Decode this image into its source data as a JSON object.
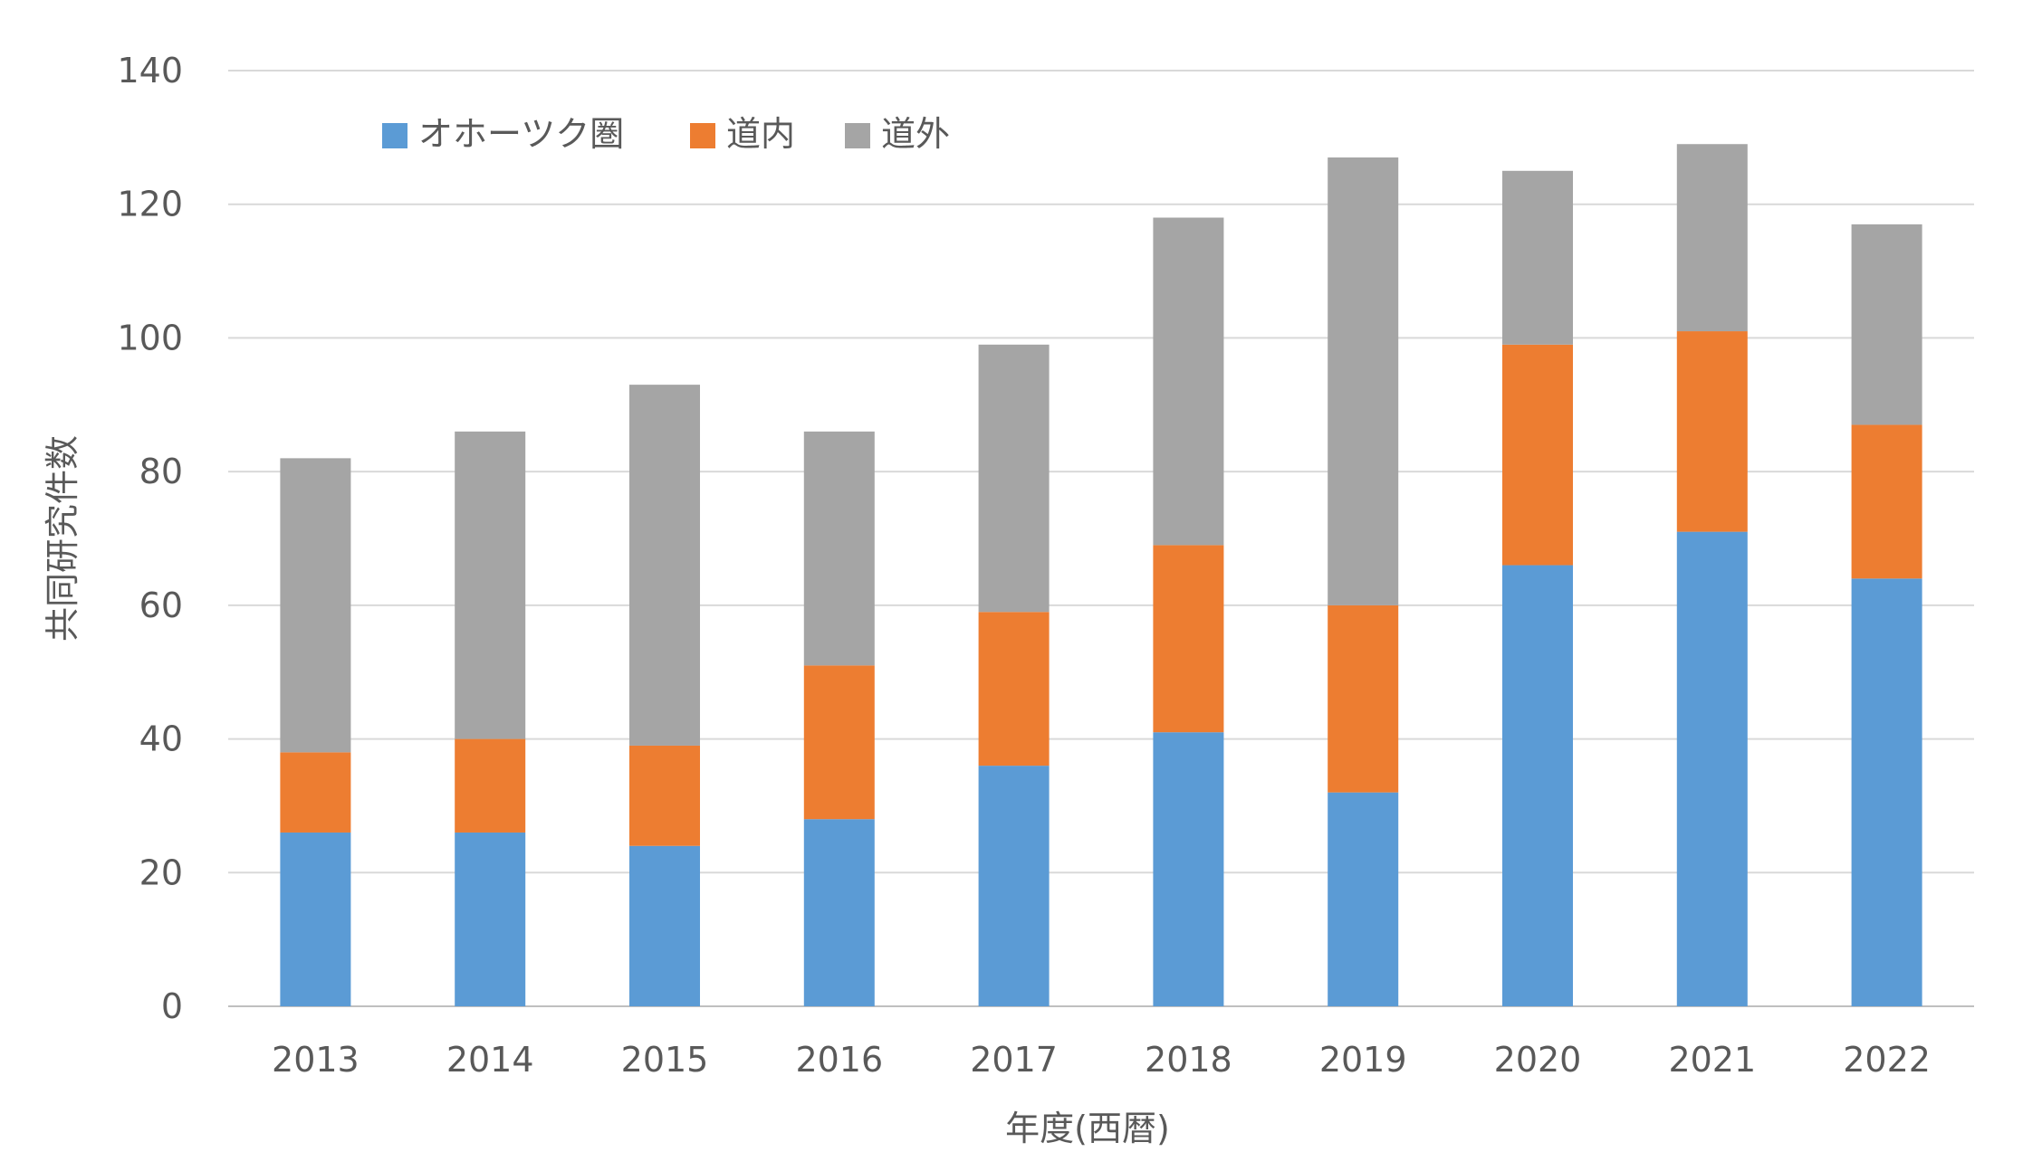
{
  "chart_data": {
    "type": "bar",
    "stacked": true,
    "title": "",
    "xlabel": "年度(西暦)",
    "ylabel": "共同研究件数",
    "ylim": [
      0,
      140
    ],
    "yticks": [
      0,
      20,
      40,
      60,
      80,
      100,
      120,
      140
    ],
    "grid": true,
    "legend_position": "top-left",
    "categories": [
      "2013",
      "2014",
      "2015",
      "2016",
      "2017",
      "2018",
      "2019",
      "2020",
      "2021",
      "2022"
    ],
    "series": [
      {
        "name": "オホーツク圏",
        "color": "#5B9BD5",
        "values": [
          26,
          26,
          24,
          28,
          36,
          41,
          32,
          66,
          71,
          64
        ]
      },
      {
        "name": "道内",
        "color": "#ED7D31",
        "values": [
          12,
          14,
          15,
          23,
          23,
          28,
          28,
          33,
          30,
          23
        ]
      },
      {
        "name": "道外",
        "color": "#A5A5A5",
        "values": [
          44,
          46,
          54,
          35,
          40,
          49,
          67,
          26,
          28,
          30
        ]
      }
    ]
  }
}
